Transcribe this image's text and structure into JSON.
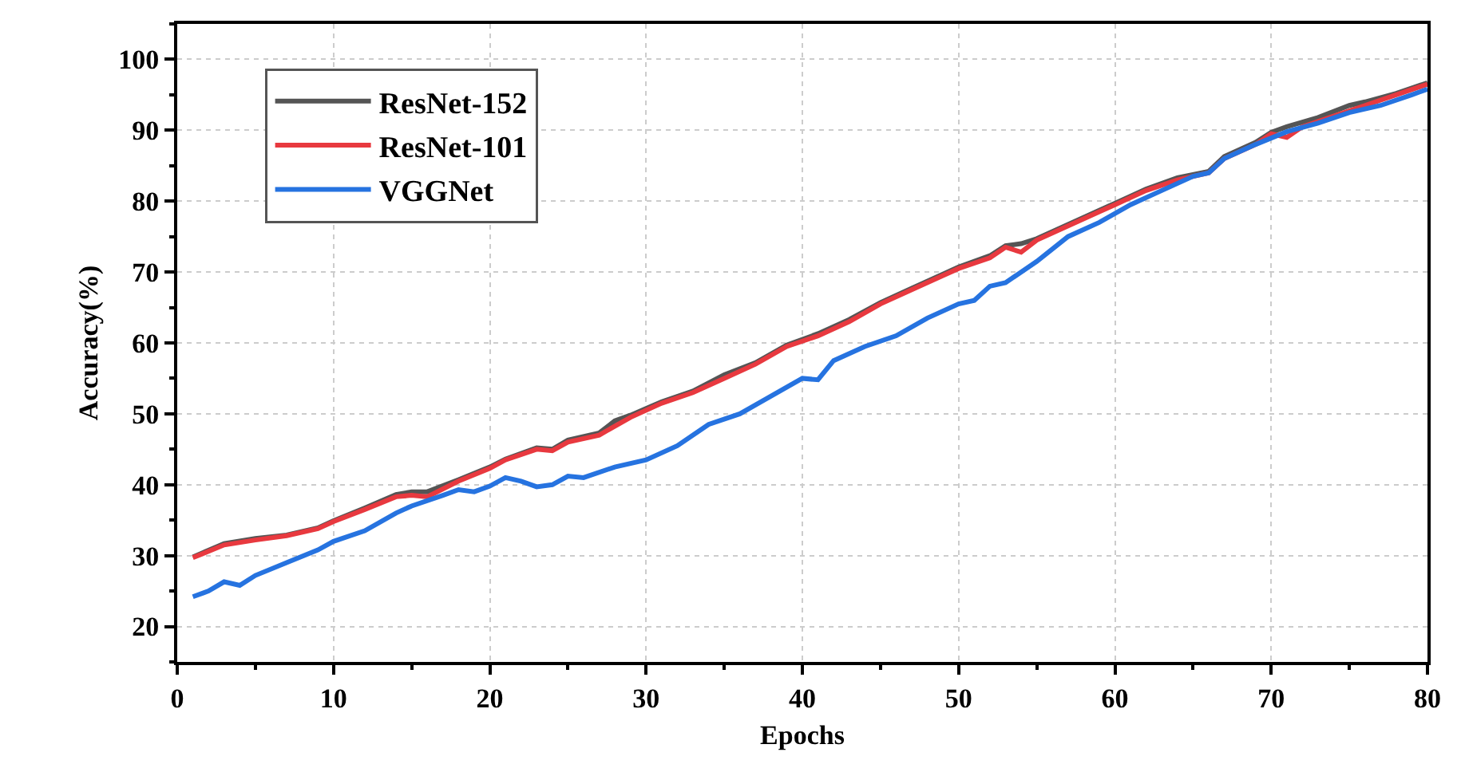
{
  "chart_data": {
    "type": "line",
    "xlabel": "Epochs",
    "ylabel": "Accuracy(%)",
    "xlim": [
      0,
      80
    ],
    "xticks": [
      0,
      10,
      20,
      30,
      40,
      50,
      60,
      70,
      80
    ],
    "ylim": [
      15,
      105
    ],
    "yticks": [
      20,
      30,
      40,
      50,
      60,
      70,
      80,
      90,
      100
    ],
    "grid": true,
    "legend": "top left",
    "line_style": "solid",
    "marker": "none",
    "series": [
      {
        "name": "ResNet-152",
        "color": "#555555",
        "x": [
          1,
          3,
          5,
          7,
          9,
          10,
          12,
          14,
          15,
          16,
          18,
          20,
          21,
          23,
          24,
          25,
          27,
          28,
          29,
          31,
          33,
          35,
          37,
          39,
          41,
          43,
          45,
          47,
          49,
          50,
          52,
          53,
          54,
          55,
          57,
          59,
          60,
          62,
          64,
          66,
          67,
          69,
          70,
          71,
          73,
          75,
          76,
          78,
          80
        ],
        "values": [
          29.8,
          31.7,
          32.4,
          32.9,
          33.9,
          34.9,
          36.7,
          38.6,
          39,
          39,
          40.7,
          42.5,
          43.6,
          45.2,
          45,
          46.3,
          47.3,
          49,
          49.8,
          51.7,
          53.2,
          55.5,
          57.2,
          59.7,
          61.3,
          63.3,
          65.7,
          67.7,
          69.7,
          70.7,
          72.3,
          73.7,
          74,
          74.7,
          76.7,
          78.7,
          79.7,
          81.7,
          83.3,
          84.2,
          86.3,
          88.3,
          89.7,
          90.5,
          91.8,
          93.5,
          94,
          95.2,
          96.7
        ]
      },
      {
        "name": "ResNet-101",
        "color": "#e8393f",
        "x": [
          1,
          3,
          5,
          7,
          9,
          10,
          12,
          14,
          15,
          16,
          18,
          20,
          21,
          23,
          24,
          25,
          27,
          29,
          31,
          33,
          35,
          37,
          39,
          41,
          43,
          45,
          47,
          49,
          50,
          52,
          53,
          54,
          55,
          57,
          59,
          60,
          62,
          64,
          66,
          67,
          69,
          70,
          71,
          72,
          74,
          76,
          78,
          80
        ],
        "values": [
          29.7,
          31.5,
          32.2,
          32.8,
          33.8,
          34.8,
          36.5,
          38.3,
          38.5,
          38.3,
          40.5,
          42.3,
          43.5,
          45,
          44.8,
          46,
          47,
          49.5,
          51.5,
          53,
          55,
          57,
          59.5,
          61,
          63,
          65.5,
          67.5,
          69.5,
          70.5,
          72,
          73.5,
          72.8,
          74.5,
          76.5,
          78.5,
          79.5,
          81.5,
          83,
          84,
          86,
          88,
          89.5,
          89,
          90.5,
          92,
          93.5,
          95,
          96.5
        ]
      },
      {
        "name": "VGGNet",
        "color": "#2673e0",
        "x": [
          1,
          2,
          3,
          4,
          5,
          7,
          9,
          10,
          12,
          14,
          15,
          17,
          18,
          19,
          20,
          21,
          22,
          23,
          24,
          25,
          26,
          28,
          30,
          32,
          34,
          36,
          38,
          40,
          41,
          42,
          44,
          46,
          48,
          50,
          51,
          52,
          53,
          55,
          57,
          59,
          61,
          63,
          65,
          66,
          67,
          69,
          71,
          73,
          75,
          77,
          79,
          80
        ],
        "values": [
          24.2,
          25,
          26.3,
          25.8,
          27.2,
          29,
          30.8,
          32,
          33.5,
          36,
          37,
          38.5,
          39.3,
          39,
          39.8,
          41,
          40.5,
          39.7,
          40,
          41.2,
          41,
          42.5,
          43.5,
          45.5,
          48.5,
          50,
          52.5,
          55,
          54.8,
          57.5,
          59.5,
          61,
          63.5,
          65.5,
          66,
          68,
          68.5,
          71.5,
          75,
          77,
          79.5,
          81.5,
          83.5,
          84,
          86,
          88,
          89.8,
          91,
          92.5,
          93.5,
          95,
          95.8
        ]
      }
    ]
  }
}
